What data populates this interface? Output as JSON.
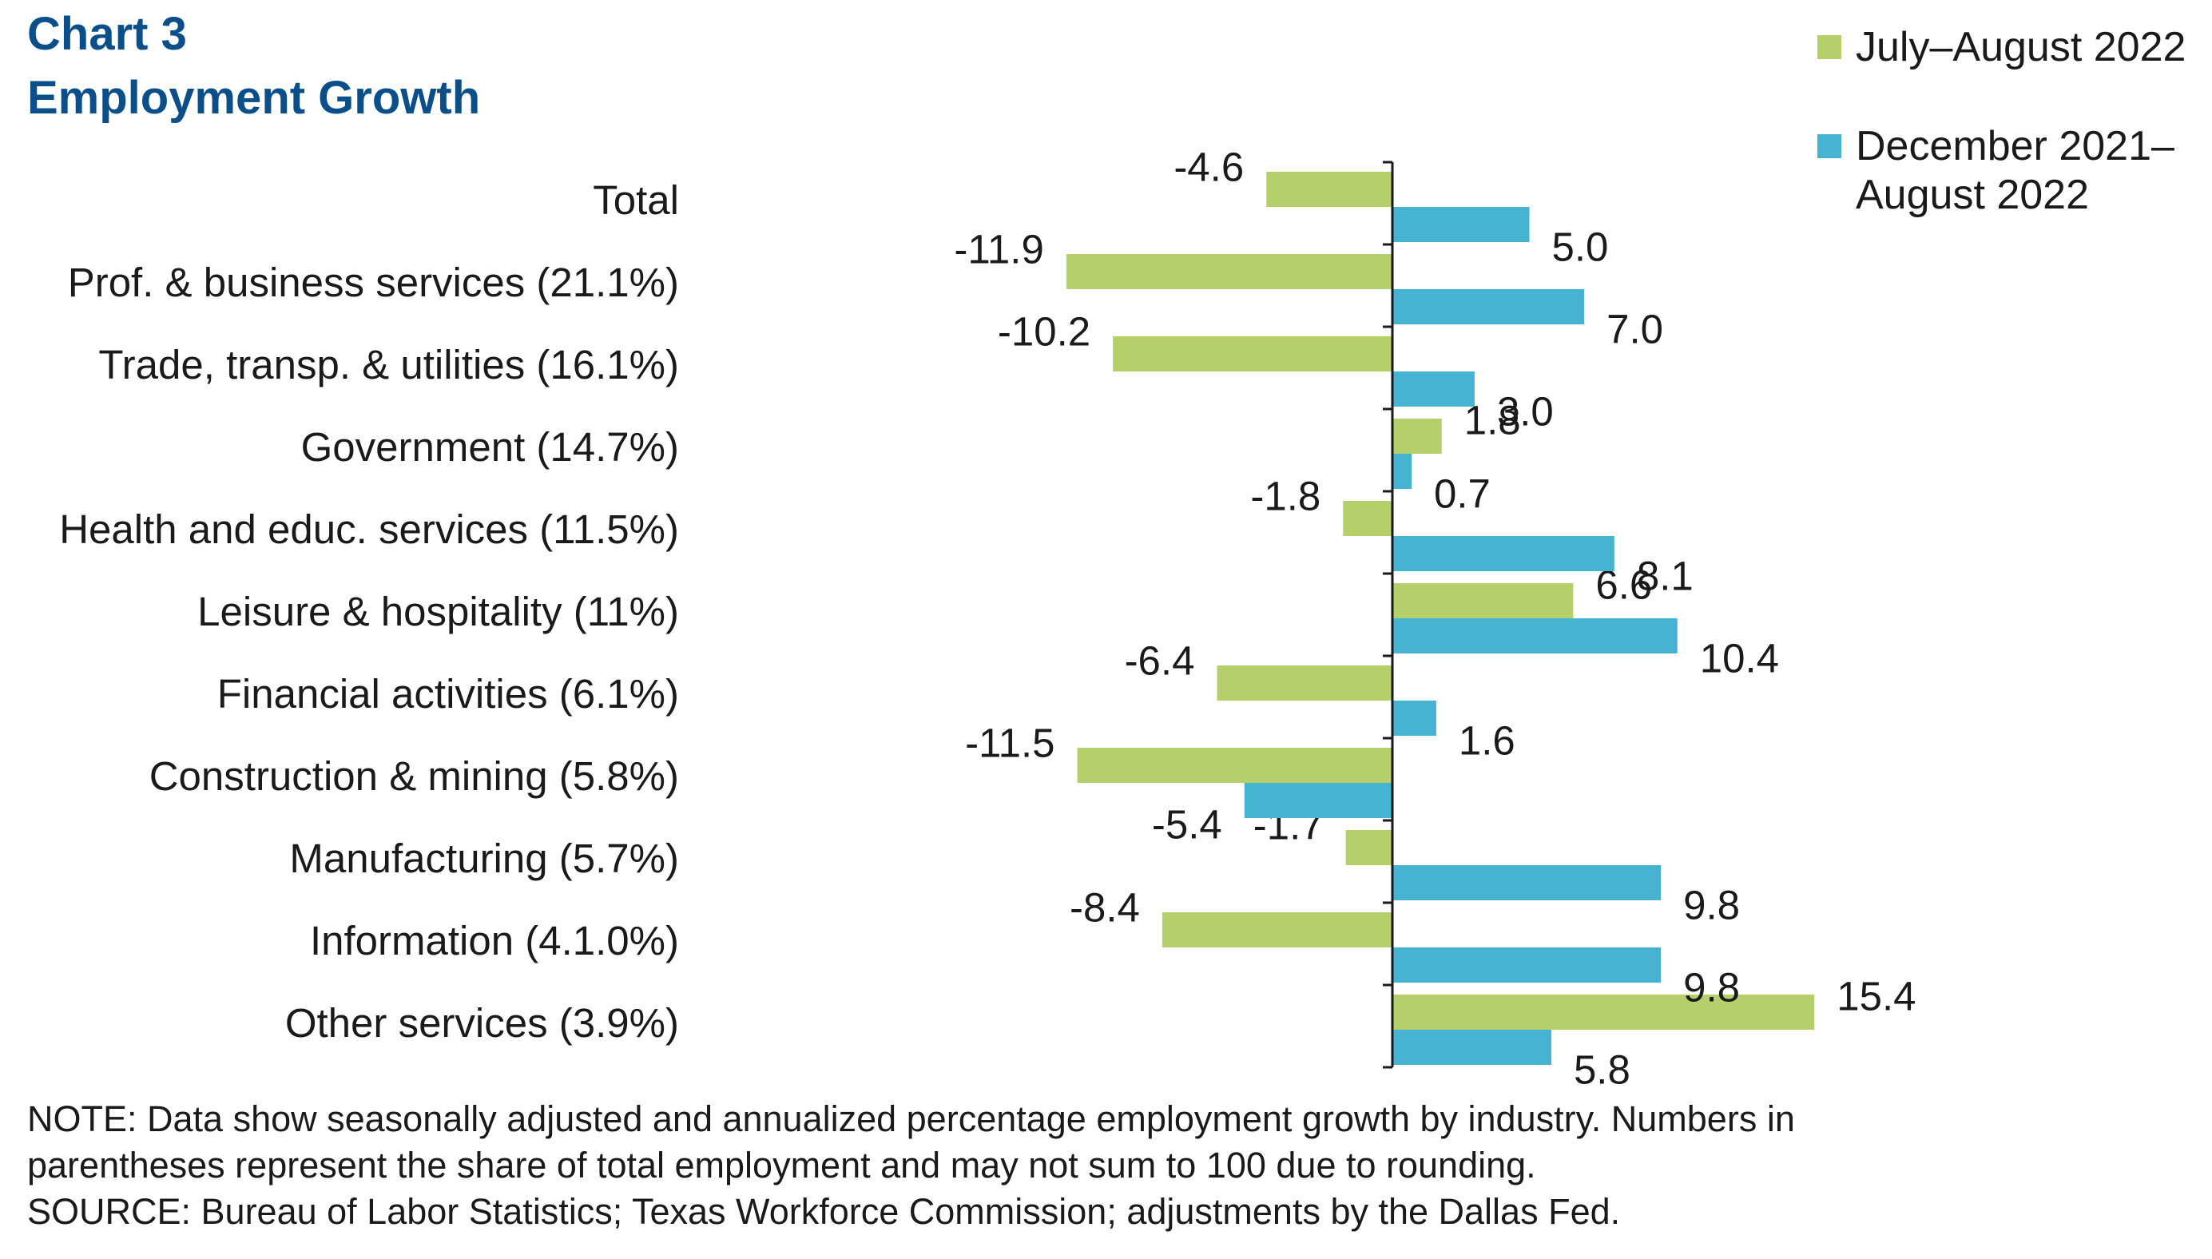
{
  "chart_data": {
    "type": "bar",
    "orientation": "horizontal",
    "title": "Chart 3",
    "subtitle": "Employment Growth",
    "categories": [
      "Total",
      "Prof. & business services (21.1%)",
      "Trade, transp. & utilities (16.1%)",
      "Government (14.7%)",
      "Health and educ. services (11.5%)",
      "Leisure & hospitality (11%)",
      "Financial activities (6.1%)",
      "Construction & mining (5.8%)",
      "Manufacturing (5.7%)",
      "Information (4.1.0%)",
      "Other services (3.9%)"
    ],
    "series": [
      {
        "name": "July–August 2022",
        "color": "#b5cf6b",
        "values": [
          -4.6,
          -11.9,
          -10.2,
          1.8,
          -1.8,
          6.6,
          -6.4,
          -11.5,
          -1.7,
          -8.4,
          15.4
        ],
        "labels": [
          "-4.6",
          "-11.9",
          "-10.2",
          "1.8",
          "-1.8",
          "6.6",
          "-6.4",
          "-11.5",
          "-1.7",
          "-8.4",
          "15.4"
        ]
      },
      {
        "name": "December 2021– August 2022",
        "name_lines": [
          "December 2021–",
          "August 2022"
        ],
        "color": "#45b3d1",
        "values": [
          5.0,
          7.0,
          3.0,
          0.7,
          8.1,
          10.4,
          1.6,
          -5.4,
          9.8,
          9.8,
          5.8
        ],
        "labels": [
          "5.0",
          "7.0",
          "3.0",
          "0.7",
          "8.1",
          "10.4",
          "1.6",
          "-5.4",
          "9.8",
          "9.8",
          "5.8"
        ]
      }
    ],
    "xlim": [
      -12.5,
      15.4
    ],
    "grid": false,
    "legend": "top-right",
    "notes": [
      "NOTE: Data show seasonally adjusted and annualized percentage employment growth by industry. Numbers in",
      "parentheses represent the share of total employment and may not sum to 100 due to rounding.",
      "SOURCE: Bureau of Labor Statistics; Texas Workforce Commission; adjustments by the Dallas Fed."
    ]
  }
}
